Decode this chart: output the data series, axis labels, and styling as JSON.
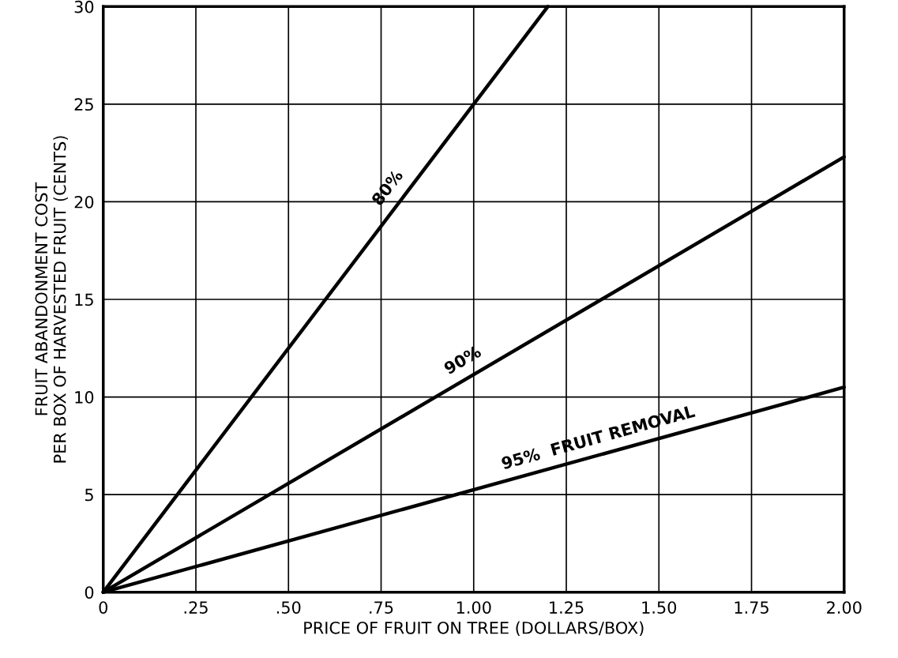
{
  "chart_data": {
    "type": "line",
    "xlabel": "PRICE OF FRUIT ON TREE (DOLLARS/BOX)",
    "ylabel": "FRUIT ABANDONMENT COST\nPER BOX OF HARVESTED FRUIT (CENTS)",
    "xlim": [
      0,
      2.0
    ],
    "ylim": [
      0,
      30
    ],
    "xticks": [
      0,
      {
        "value": 0.25,
        "label": ".25"
      },
      {
        "value": 0.5,
        "label": ".50"
      },
      {
        "value": 0.75,
        "label": ".75"
      },
      {
        "value": 1.0,
        "label": "1.00"
      },
      {
        "value": 1.25,
        "label": "1.25"
      },
      {
        "value": 1.5,
        "label": "1.50"
      },
      {
        "value": 1.75,
        "label": "1.75"
      },
      {
        "value": 2.0,
        "label": "2.00"
      }
    ],
    "yticks": [
      0,
      5,
      10,
      15,
      20,
      25,
      30
    ],
    "grid": true,
    "legend": false,
    "line_style": "solid",
    "marker": "none",
    "series": [
      {
        "name": "80%",
        "color": "#000000",
        "x": [
          0,
          1.2
        ],
        "values": [
          0,
          30
        ]
      },
      {
        "name": "90%",
        "color": "#000000",
        "x": [
          0,
          2.0
        ],
        "values": [
          0,
          22.3
        ]
      },
      {
        "name": "95%  FRUIT REMOVAL",
        "color": "#000000",
        "x": [
          0,
          2.0
        ],
        "values": [
          0,
          10.5
        ]
      }
    ]
  }
}
